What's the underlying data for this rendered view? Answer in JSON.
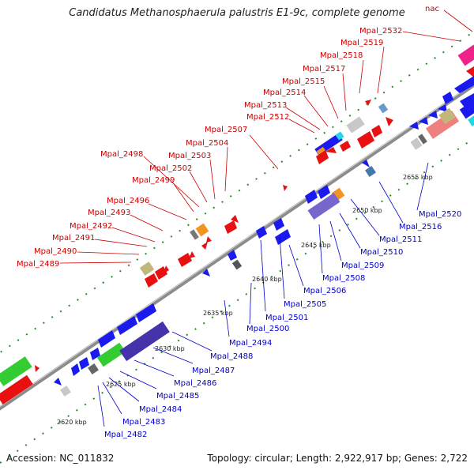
{
  "title": "Candidatus Methanosphaerula palustris E1-9c, complete genome",
  "footer": {
    "accession": "Accession: NC_011832",
    "summary": "Topology: circular; Length: 2,922,917 bp; Genes: 2,722"
  },
  "colors": {
    "upper_label": "#cc0000",
    "lower_label": "#0000cc",
    "forward_gene": "#ee1111",
    "reverse_gene": "#1a1aee"
  },
  "ticks": [
    "2620 kbp",
    "2625 kbp",
    "2630 kbp",
    "2635 kbp",
    "2640 kbp",
    "2645 kbp",
    "2650 kbp",
    "2655 kbp"
  ],
  "upper_labels": [
    "nac",
    "Mpal_2532",
    "Mpal_2519",
    "Mpal_2518",
    "Mpal_2517",
    "Mpal_2515",
    "Mpal_2514",
    "Mpal_2513",
    "Mpal_2512",
    "Mpal_2507",
    "Mpal_2504",
    "Mpal_2503",
    "Mpal_2502",
    "Mpal_2498",
    "Mpal_2499",
    "Mpal_2496",
    "Mpal_2493",
    "Mpal_2492",
    "Mpal_2491",
    "Mpal_2490",
    "Mpal_2489"
  ],
  "lower_labels": [
    "Mpal_2520",
    "Mpal_2516",
    "Mpal_2511",
    "Mpal_2510",
    "Mpal_2509",
    "Mpal_2508",
    "Mpal_2506",
    "Mpal_2505",
    "Mpal_2501",
    "Mpal_2500",
    "Mpal_2494",
    "Mpal_2488",
    "Mpal_2487",
    "Mpal_2486",
    "Mpal_2485",
    "Mpal_2484",
    "Mpal_2483",
    "Mpal_2482"
  ]
}
